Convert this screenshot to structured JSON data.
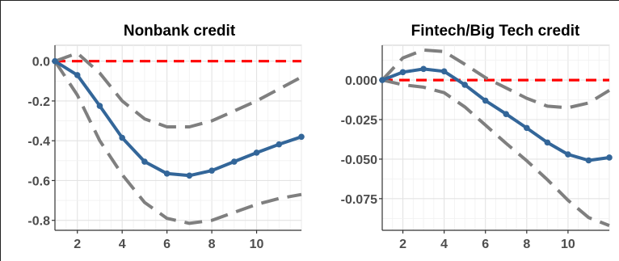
{
  "chart_data": [
    {
      "type": "line",
      "title": "Nonbank credit",
      "xlabel": "",
      "ylabel": "",
      "x": [
        1,
        2,
        3,
        4,
        5,
        6,
        7,
        8,
        9,
        10,
        11,
        12
      ],
      "xlim": [
        1,
        12
      ],
      "ylim": [
        -0.85,
        0.08
      ],
      "xticks": [
        2,
        4,
        6,
        8,
        10
      ],
      "xtick_labels": [
        "2",
        "4",
        "6",
        "8",
        "10"
      ],
      "yticks": [
        0.0,
        -0.2,
        -0.4,
        -0.6,
        -0.8
      ],
      "ytick_labels": [
        "0.0",
        "-0.2",
        "-0.4",
        "-0.6",
        "-0.8"
      ],
      "grid": true,
      "legend": "none",
      "series": [
        {
          "role": "estimate",
          "style": "solid-with-markers",
          "color": "#336699",
          "values": [
            0.0,
            -0.07,
            -0.225,
            -0.385,
            -0.505,
            -0.565,
            -0.575,
            -0.55,
            -0.505,
            -0.46,
            -0.418,
            -0.38
          ]
        },
        {
          "role": "upper-band",
          "style": "dashed",
          "color": "#7f7f7f",
          "values": [
            0.0,
            0.04,
            -0.06,
            -0.2,
            -0.29,
            -0.33,
            -0.33,
            -0.3,
            -0.25,
            -0.2,
            -0.14,
            -0.08
          ]
        },
        {
          "role": "lower-band",
          "style": "dashed",
          "color": "#7f7f7f",
          "values": [
            0.0,
            -0.17,
            -0.4,
            -0.57,
            -0.71,
            -0.79,
            -0.815,
            -0.8,
            -0.76,
            -0.72,
            -0.69,
            -0.67
          ]
        },
        {
          "role": "zero-line",
          "style": "dashed",
          "color": "#ff0000",
          "values": [
            0,
            0,
            0,
            0,
            0,
            0,
            0,
            0,
            0,
            0,
            0,
            0
          ]
        }
      ]
    },
    {
      "type": "line",
      "title": "Fintech/Big Tech credit",
      "xlabel": "",
      "ylabel": "",
      "x": [
        1,
        2,
        3,
        4,
        5,
        6,
        7,
        8,
        9,
        10,
        11,
        12
      ],
      "xlim": [
        1,
        12
      ],
      "ylim": [
        -0.095,
        0.022
      ],
      "xticks": [
        2,
        4,
        6,
        8,
        10
      ],
      "xtick_labels": [
        "2",
        "4",
        "6",
        "8",
        "10"
      ],
      "yticks": [
        0.0,
        -0.025,
        -0.05,
        -0.075
      ],
      "ytick_labels": [
        "0.000",
        "-0.025",
        "-0.050",
        "-0.075"
      ],
      "grid": true,
      "legend": "none",
      "series": [
        {
          "role": "estimate",
          "style": "solid-with-markers",
          "color": "#336699",
          "values": [
            0.0,
            0.005,
            0.007,
            0.0055,
            -0.003,
            -0.013,
            -0.0215,
            -0.0303,
            -0.0395,
            -0.047,
            -0.0508,
            -0.049
          ]
        },
        {
          "role": "upper-band",
          "style": "dashed",
          "color": "#7f7f7f",
          "values": [
            0.0,
            0.014,
            0.019,
            0.018,
            0.01,
            0.0015,
            -0.005,
            -0.0115,
            -0.0165,
            -0.0175,
            -0.0145,
            -0.0065
          ]
        },
        {
          "role": "lower-band",
          "style": "dashed",
          "color": "#7f7f7f",
          "values": [
            0.0,
            -0.003,
            -0.0045,
            -0.008,
            -0.017,
            -0.0285,
            -0.04,
            -0.051,
            -0.063,
            -0.076,
            -0.087,
            -0.092
          ]
        },
        {
          "role": "zero-line",
          "style": "dashed",
          "color": "#ff0000",
          "values": [
            0,
            0,
            0,
            0,
            0,
            0,
            0,
            0,
            0,
            0,
            0,
            0
          ]
        }
      ]
    }
  ]
}
